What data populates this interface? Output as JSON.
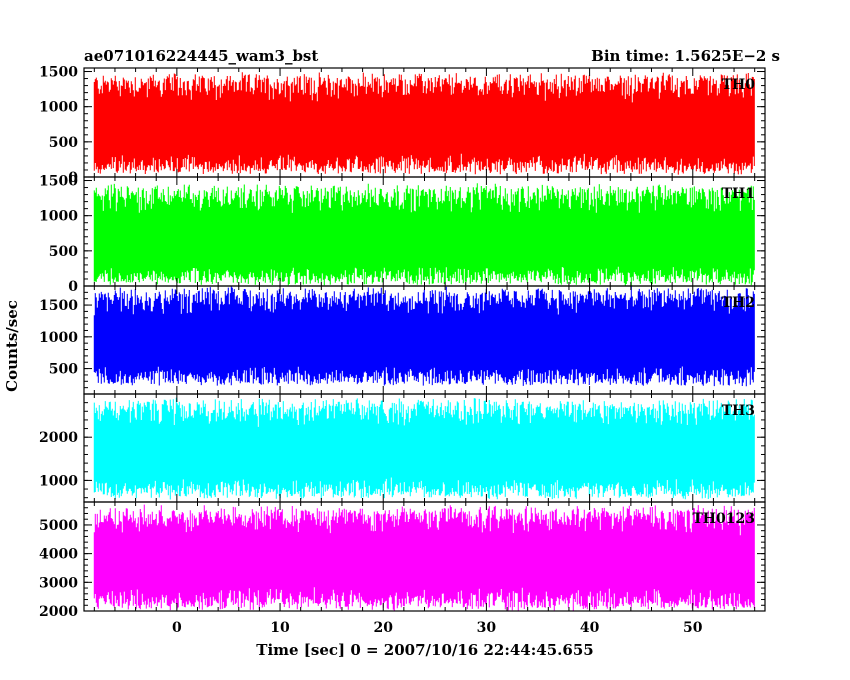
{
  "header": {
    "title": "ae071016224445_wam3_bst",
    "bin_time": "Bin time: 1.5625E−2 s"
  },
  "axes": {
    "ylabel": "Counts/sec",
    "xlabel": "Time [sec] 0 = 2007/10/16 22:44:45.655"
  },
  "chart_data": {
    "type": "line",
    "title": "ae071016224445_wam3_bst",
    "xlabel": "Time [sec] 0 = 2007/10/16 22:44:45.655",
    "ylabel": "Counts/sec",
    "xlim": [
      -9,
      57
    ],
    "x_data_range": [
      -8,
      56
    ],
    "x_ticks": [
      0,
      10,
      20,
      30,
      40,
      50
    ],
    "x_tick_labels": [
      "0",
      "10",
      "20",
      "30",
      "40",
      "50"
    ],
    "bin_time_s": 0.015625,
    "grid": false,
    "panels": [
      {
        "name": "TH0",
        "color": "#ff0000",
        "ylim": [
          0,
          1550
        ],
        "yticks": [
          0,
          500,
          1000,
          1500
        ],
        "ytick_labels": [
          "0",
          "500",
          "1000",
          "1500"
        ],
        "baseline": 650,
        "low": 90,
        "high": 1450
      },
      {
        "name": "TH1",
        "color": "#00ff00",
        "ylim": [
          0,
          1550
        ],
        "yticks": [
          0,
          500,
          1000,
          1500
        ],
        "ytick_labels": [
          "0",
          "500",
          "1000",
          "1500"
        ],
        "baseline": 600,
        "low": 60,
        "high": 1420
      },
      {
        "name": "TH2",
        "color": "#0000ff",
        "ylim": [
          100,
          1800
        ],
        "yticks": [
          500,
          1000,
          1500
        ],
        "ytick_labels": [
          "500",
          "1000",
          "1500"
        ],
        "baseline": 900,
        "low": 280,
        "high": 1750
      },
      {
        "name": "TH3",
        "color": "#00ffff",
        "ylim": [
          500,
          3000
        ],
        "yticks": [
          1000,
          2000
        ],
        "ytick_labels": [
          "1000",
          "2000"
        ],
        "baseline": 1600,
        "low": 650,
        "high": 2850
      },
      {
        "name": "TH0123",
        "color": "#ff00ff",
        "ylim": [
          2000,
          5800
        ],
        "yticks": [
          2000,
          3000,
          4000,
          5000
        ],
        "ytick_labels": [
          "2000",
          "3000",
          "4000",
          "5000"
        ],
        "baseline": 3700,
        "low": 2150,
        "high": 5600
      }
    ]
  }
}
